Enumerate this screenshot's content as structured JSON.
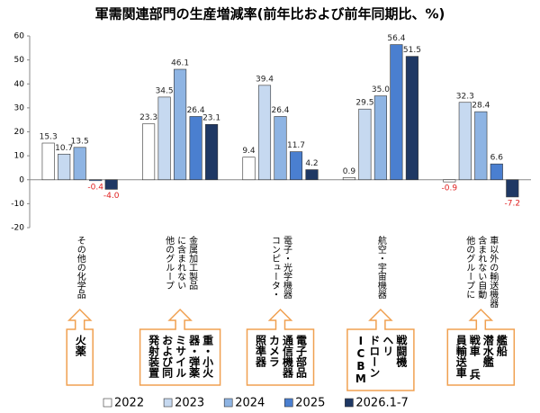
{
  "chart_data": {
    "type": "bar",
    "title": "軍需関連部門の生産増減率(前年比および前年同期比、%)",
    "categories": [
      "その他の化学品",
      "他のグループ\nに含まれない\n金属加工製品",
      "コンピュータ・\n電子・光学機器",
      "航空・宇宙機器",
      "他のグループに\n含まれない自動\n車以外の輸送機器"
    ],
    "series": [
      {
        "name": "2022",
        "color": "#ffffff",
        "values": [
          15.3,
          23.3,
          9.4,
          0.9,
          -0.9
        ]
      },
      {
        "name": "2023",
        "color": "#c6d9f0",
        "values": [
          10.7,
          34.5,
          39.4,
          29.5,
          32.3
        ]
      },
      {
        "name": "2024",
        "color": "#8eb4e3",
        "values": [
          13.5,
          46.1,
          26.4,
          35.0,
          28.4
        ],
        "value_labels": [
          "13.5",
          "46.1",
          "26.4",
          "35.0",
          "28.4"
        ]
      },
      {
        "name": "2025",
        "color": "#4a7fd0",
        "values": [
          -0.4,
          26.4,
          11.7,
          56.4,
          6.6
        ]
      },
      {
        "name": "2026.1-7",
        "color": "#1f3864",
        "values": [
          -4.0,
          23.1,
          4.2,
          51.5,
          -7.2
        ],
        "value_labels": [
          "-4.0",
          "23.1",
          "4.2",
          "51.5",
          "-7.2"
        ]
      }
    ],
    "annotations": [
      "火薬",
      "重・小火\n器・弾薬\nミサイル\nおよび同\n発射装置",
      "電子部品\n通信機器\nカメラ\n照準器",
      "戦闘機\nヘリ\nドローン\nICBM",
      "艦船\n潜水艦\n戦車 兵\n員輸送車"
    ],
    "ylim": [
      -20,
      60
    ],
    "yticks": [
      -20,
      -10,
      0,
      10,
      20,
      30,
      40,
      50,
      60
    ],
    "grid": false
  }
}
